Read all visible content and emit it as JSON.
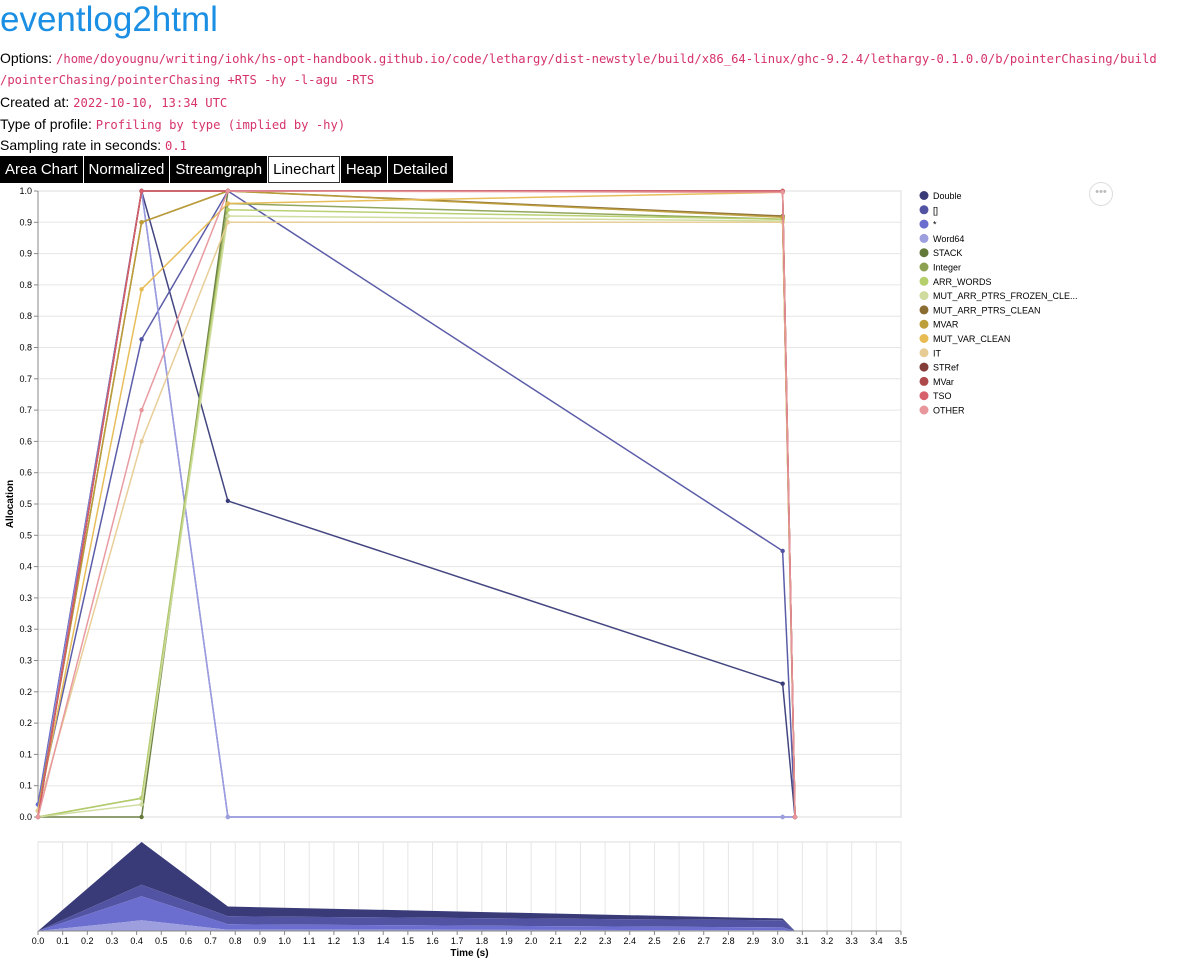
{
  "page": {
    "title": "eventlog2html",
    "options_label": "Options:",
    "options_value_line1": "/home/doyougnu/writing/iohk/hs-opt-handbook.github.io/code/lethargy/dist-newstyle/build/x86_64-linux/ghc-9.2.4/lethargy-0.1.0.0/b/pointerChasing/build",
    "options_value_line2": "/pointerChasing/pointerChasing +RTS -hy -l-agu -RTS",
    "created_label": "Created at:",
    "created_value": "2022-10-10, 13:34 UTC",
    "profile_label": "Type of profile:",
    "profile_value": "Profiling by type (implied by -hy)",
    "rate_label": "Sampling rate in seconds:",
    "rate_value": "0.1",
    "more_button": "•••"
  },
  "tabs": [
    {
      "label": "Area Chart",
      "active": false
    },
    {
      "label": "Normalized",
      "active": false
    },
    {
      "label": "Streamgraph",
      "active": false
    },
    {
      "label": "Linechart",
      "active": true
    },
    {
      "label": "Heap",
      "active": false
    },
    {
      "label": "Detailed",
      "active": false
    }
  ],
  "chart_data": [
    {
      "type": "line",
      "ylabel": "Allocation",
      "y_tick_labels": [
        "0.0",
        "0.1",
        "0.1",
        "0.2",
        "0.2",
        "0.3",
        "0.3",
        "0.3",
        "0.4",
        "0.5",
        "0.5",
        "0.6",
        "0.6",
        "0.7",
        "0.7",
        "0.8",
        "0.8",
        "0.8",
        "0.9",
        "0.9",
        "1.0"
      ],
      "ylim": [
        0,
        1
      ],
      "xlim": [
        0,
        3.5
      ],
      "grid": true,
      "legend_position": "right",
      "series": [
        {
          "name": "Double",
          "color": "#393b79",
          "x": [
            0,
            0.42,
            0.77,
            3.02,
            3.07
          ],
          "y": [
            0.02,
            1.0,
            0.505,
            0.213,
            0
          ]
        },
        {
          "name": "[]",
          "color": "#5254a3",
          "x": [
            0,
            0.42,
            0.77,
            3.02,
            3.07
          ],
          "y": [
            0.02,
            0.763,
            1.0,
            0.425,
            0
          ]
        },
        {
          "name": "*",
          "color": "#6b6ecf",
          "x": [
            0,
            0.42,
            0.77,
            3.02,
            3.07
          ],
          "y": [
            0.02,
            1.0,
            0,
            0,
            0
          ]
        },
        {
          "name": "Word64",
          "color": "#9c9ede",
          "x": [
            0,
            0.42,
            0.77,
            3.02,
            3.07
          ],
          "y": [
            0.01,
            1.0,
            0,
            0,
            0
          ]
        },
        {
          "name": "STACK",
          "color": "#637939",
          "x": [
            0,
            0.42,
            0.77,
            3.02,
            3.07
          ],
          "y": [
            0,
            0,
            1.0,
            0.999,
            0
          ]
        },
        {
          "name": "Integer",
          "color": "#8ca252",
          "x": [
            0,
            0.42,
            0.77,
            3.02,
            3.07
          ],
          "y": [
            0,
            0.03,
            0.98,
            0.955,
            0
          ]
        },
        {
          "name": "ARR_WORDS",
          "color": "#b5cf6b",
          "x": [
            0,
            0.42,
            0.77,
            3.02,
            3.07
          ],
          "y": [
            0,
            0.03,
            0.97,
            0.955,
            0
          ]
        },
        {
          "name": "MUT_ARR_PTRS_FROZEN_CLE...",
          "color": "#cedb9c",
          "x": [
            0,
            0.42,
            0.77,
            3.02,
            3.07
          ],
          "y": [
            0,
            0.02,
            0.96,
            0.952,
            0
          ]
        },
        {
          "name": "MUT_ARR_PTRS_CLEAN",
          "color": "#8c6d31",
          "x": [
            0,
            0.42,
            0.77,
            3.02,
            3.07
          ],
          "y": [
            0.01,
            0.95,
            1.0,
            0.96,
            0
          ]
        },
        {
          "name": "MVAR",
          "color": "#bd9e39",
          "x": [
            0,
            0.42,
            0.77,
            3.02,
            3.07
          ],
          "y": [
            0.01,
            0.95,
            1.0,
            0.958,
            0
          ]
        },
        {
          "name": "MUT_VAR_CLEAN",
          "color": "#e7ba52",
          "x": [
            0,
            0.42,
            0.77,
            3.02,
            3.07
          ],
          "y": [
            0.01,
            0.843,
            0.98,
            0.998,
            0
          ]
        },
        {
          "name": "IT",
          "color": "#e7cb94",
          "x": [
            0,
            0.42,
            0.77,
            3.02,
            3.07
          ],
          "y": [
            0.01,
            0.6,
            0.95,
            0.95,
            0
          ]
        },
        {
          "name": "STRef",
          "color": "#843c39",
          "x": [
            0,
            0.42,
            0.77,
            3.02,
            3.07
          ],
          "y": [
            0,
            1.0,
            1.0,
            1.0,
            0
          ]
        },
        {
          "name": "MVar",
          "color": "#ad494a",
          "x": [
            0,
            0.42,
            0.77,
            3.02,
            3.07
          ],
          "y": [
            0,
            1.0,
            1.0,
            1.0,
            0
          ]
        },
        {
          "name": "TSO",
          "color": "#d6616b",
          "x": [
            0,
            0.42,
            0.77,
            3.02,
            3.07
          ],
          "y": [
            0,
            1.0,
            1.0,
            1.0,
            0
          ]
        },
        {
          "name": "OTHER",
          "color": "#e7969c",
          "x": [
            0,
            0.42,
            0.77,
            3.02,
            3.07
          ],
          "y": [
            0,
            0.65,
            1.0,
            0.998,
            0
          ]
        }
      ]
    },
    {
      "type": "area",
      "xlabel": "Time (s)",
      "x_tick_labels": [
        "0.0",
        "0.1",
        "0.2",
        "0.3",
        "0.4",
        "0.5",
        "0.6",
        "0.7",
        "0.8",
        "0.9",
        "1.0",
        "1.1",
        "1.2",
        "1.3",
        "1.4",
        "1.5",
        "1.6",
        "1.7",
        "1.8",
        "1.9",
        "2.0",
        "2.1",
        "2.2",
        "2.3",
        "2.4",
        "2.5",
        "2.6",
        "2.7",
        "2.8",
        "2.9",
        "3.0",
        "3.1",
        "3.2",
        "3.3",
        "3.4",
        "3.5"
      ],
      "xlim": [
        0,
        3.5
      ],
      "ylim": [
        0,
        1
      ],
      "stacked": true,
      "grid": true,
      "x": [
        0,
        0.42,
        0.77,
        3.02,
        3.07
      ],
      "series": [
        {
          "color": "#9c9ede",
          "values": [
            0,
            0.12,
            0.015,
            0.01,
            0
          ]
        },
        {
          "color": "#6b6ecf",
          "values": [
            0,
            0.27,
            0.06,
            0.03,
            0
          ]
        },
        {
          "color": "#5254a3",
          "values": [
            0,
            0.13,
            0.09,
            0.08,
            0
          ]
        },
        {
          "color": "#393b79",
          "values": [
            0,
            0.48,
            0.11,
            0.02,
            0
          ]
        }
      ]
    }
  ]
}
